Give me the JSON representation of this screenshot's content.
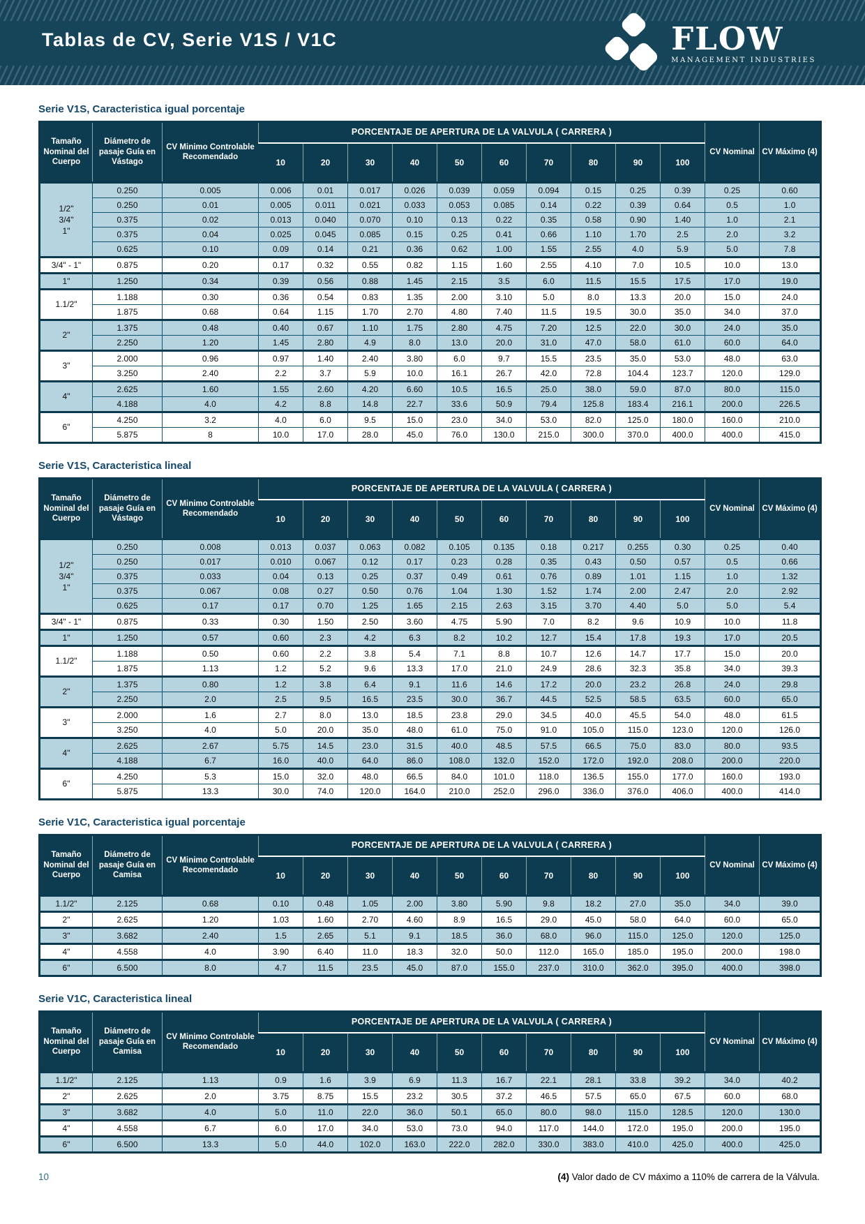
{
  "header": {
    "title": "Tablas de CV, Serie V1S / V1C",
    "logo_text": "FLOW",
    "logo_subtitle": "MANAGEMENT INDUSTRIES"
  },
  "colors": {
    "band": "#16455a",
    "table_header": "#0d3c50",
    "shaded_row": "#b6d3e0",
    "border": "#0e5270",
    "title_text": "#15486b"
  },
  "table_headers": {
    "size_label": "Tamaño Nominal del Cuerpo",
    "cvmin_label": "CV Minimo Controlable Recomendado",
    "percent_banner": "PORCENTAJE DE APERTURA DE LA VALVULA ( CARRERA )",
    "ticks": [
      "10",
      "20",
      "30",
      "40",
      "50",
      "60",
      "70",
      "80",
      "90",
      "100"
    ],
    "nominal_label": "CV Nominal",
    "max_label": "CV Máximo (4)"
  },
  "tables": [
    {
      "title": "Serie V1S, Caracteristica igual porcentaje",
      "dia_label": "Diámetro de pasaje Guía en Vástago",
      "groups": [
        {
          "size": [
            "1/2\"",
            "3/4\"",
            "1\""
          ],
          "shaded": true,
          "rows": [
            [
              "0.250",
              "0.005",
              "0.006",
              "0.01",
              "0.017",
              "0.026",
              "0.039",
              "0.059",
              "0.094",
              "0.15",
              "0.25",
              "0.39",
              "0.25",
              "0.60"
            ],
            [
              "0.250",
              "0.01",
              "0.005",
              "0.011",
              "0.021",
              "0.033",
              "0.053",
              "0.085",
              "0.14",
              "0.22",
              "0.39",
              "0.64",
              "0.5",
              "1.0"
            ],
            [
              "0.375",
              "0.02",
              "0.013",
              "0.040",
              "0.070",
              "0.10",
              "0.13",
              "0.22",
              "0.35",
              "0.58",
              "0.90",
              "1.40",
              "1.0",
              "2.1"
            ],
            [
              "0.375",
              "0.04",
              "0.025",
              "0.045",
              "0.085",
              "0.15",
              "0.25",
              "0.41",
              "0.66",
              "1.10",
              "1.70",
              "2.5",
              "2.0",
              "3.2"
            ],
            [
              "0.625",
              "0.10",
              "0.09",
              "0.14",
              "0.21",
              "0.36",
              "0.62",
              "1.00",
              "1.55",
              "2.55",
              "4.0",
              "5.9",
              "5.0",
              "7.8"
            ]
          ]
        },
        {
          "size": [
            "3/4\" - 1\""
          ],
          "shaded": false,
          "rows": [
            [
              "0.875",
              "0.20",
              "0.17",
              "0.32",
              "0.55",
              "0.82",
              "1.15",
              "1.60",
              "2.55",
              "4.10",
              "7.0",
              "10.5",
              "10.0",
              "13.0"
            ]
          ]
        },
        {
          "size": [
            "1\""
          ],
          "shaded": true,
          "rows": [
            [
              "1.250",
              "0.34",
              "0.39",
              "0.56",
              "0.88",
              "1.45",
              "2.15",
              "3.5",
              "6.0",
              "11.5",
              "15.5",
              "17.5",
              "17.0",
              "19.0"
            ]
          ]
        },
        {
          "size": [
            "1.1/2\""
          ],
          "shaded": false,
          "rows": [
            [
              "1.188",
              "0.30",
              "0.36",
              "0.54",
              "0.83",
              "1.35",
              "2.00",
              "3.10",
              "5.0",
              "8.0",
              "13.3",
              "20.0",
              "15.0",
              "24.0"
            ],
            [
              "1.875",
              "0.68",
              "0.64",
              "1.15",
              "1.70",
              "2.70",
              "4.80",
              "7.40",
              "11.5",
              "19.5",
              "30.0",
              "35.0",
              "34.0",
              "37.0"
            ]
          ]
        },
        {
          "size": [
            "2\""
          ],
          "shaded": true,
          "rows": [
            [
              "1.375",
              "0.48",
              "0.40",
              "0.67",
              "1.10",
              "1.75",
              "2.80",
              "4.75",
              "7.20",
              "12.5",
              "22.0",
              "30.0",
              "24.0",
              "35.0"
            ],
            [
              "2.250",
              "1.20",
              "1.45",
              "2.80",
              "4.9",
              "8.0",
              "13.0",
              "20.0",
              "31.0",
              "47.0",
              "58.0",
              "61.0",
              "60.0",
              "64.0"
            ]
          ]
        },
        {
          "size": [
            "3\""
          ],
          "shaded": false,
          "rows": [
            [
              "2.000",
              "0.96",
              "0.97",
              "1.40",
              "2.40",
              "3.80",
              "6.0",
              "9.7",
              "15.5",
              "23.5",
              "35.0",
              "53.0",
              "48.0",
              "63.0"
            ],
            [
              "3.250",
              "2.40",
              "2.2",
              "3.7",
              "5.9",
              "10.0",
              "16.1",
              "26.7",
              "42.0",
              "72.8",
              "104.4",
              "123.7",
              "120.0",
              "129.0"
            ]
          ]
        },
        {
          "size": [
            "4\""
          ],
          "shaded": true,
          "rows": [
            [
              "2.625",
              "1.60",
              "1.55",
              "2.60",
              "4.20",
              "6.60",
              "10.5",
              "16.5",
              "25.0",
              "38.0",
              "59.0",
              "87.0",
              "80.0",
              "115.0"
            ],
            [
              "4.188",
              "4.0",
              "4.2",
              "8.8",
              "14.8",
              "22.7",
              "33.6",
              "50.9",
              "79.4",
              "125.8",
              "183.4",
              "216.1",
              "200.0",
              "226.5"
            ]
          ]
        },
        {
          "size": [
            "6\""
          ],
          "shaded": false,
          "rows": [
            [
              "4.250",
              "3.2",
              "4.0",
              "6.0",
              "9.5",
              "15.0",
              "23.0",
              "34.0",
              "53.0",
              "82.0",
              "125.0",
              "180.0",
              "160.0",
              "210.0"
            ],
            [
              "5.875",
              "8",
              "10.0",
              "17.0",
              "28.0",
              "45.0",
              "76.0",
              "130.0",
              "215.0",
              "300.0",
              "370.0",
              "400.0",
              "400.0",
              "415.0"
            ]
          ]
        }
      ]
    },
    {
      "title": "Serie V1S, Caracteristica lineal",
      "dia_label": "Diámetro de pasaje Guía en Vástago",
      "groups": [
        {
          "size": [
            "1/2\"",
            "3/4\"",
            "1\""
          ],
          "shaded": true,
          "rows": [
            [
              "0.250",
              "0.008",
              "0.013",
              "0.037",
              "0.063",
              "0.082",
              "0.105",
              "0.135",
              "0.18",
              "0.217",
              "0.255",
              "0.30",
              "0.25",
              "0.40"
            ],
            [
              "0.250",
              "0.017",
              "0.010",
              "0.067",
              "0.12",
              "0.17",
              "0.23",
              "0.28",
              "0.35",
              "0.43",
              "0.50",
              "0.57",
              "0.5",
              "0.66"
            ],
            [
              "0.375",
              "0.033",
              "0.04",
              "0.13",
              "0.25",
              "0.37",
              "0.49",
              "0.61",
              "0.76",
              "0.89",
              "1.01",
              "1.15",
              "1.0",
              "1.32"
            ],
            [
              "0.375",
              "0.067",
              "0.08",
              "0.27",
              "0.50",
              "0.76",
              "1.04",
              "1.30",
              "1.52",
              "1.74",
              "2.00",
              "2.47",
              "2.0",
              "2.92"
            ],
            [
              "0.625",
              "0.17",
              "0.17",
              "0.70",
              "1.25",
              "1.65",
              "2.15",
              "2.63",
              "3.15",
              "3.70",
              "4.40",
              "5.0",
              "5.0",
              "5.4"
            ]
          ]
        },
        {
          "size": [
            "3/4\" - 1\""
          ],
          "shaded": false,
          "rows": [
            [
              "0.875",
              "0.33",
              "0.30",
              "1.50",
              "2.50",
              "3.60",
              "4.75",
              "5.90",
              "7.0",
              "8.2",
              "9.6",
              "10.9",
              "10.0",
              "11.8"
            ]
          ]
        },
        {
          "size": [
            "1\""
          ],
          "shaded": true,
          "rows": [
            [
              "1.250",
              "0.57",
              "0.60",
              "2.3",
              "4.2",
              "6.3",
              "8.2",
              "10.2",
              "12.7",
              "15.4",
              "17.8",
              "19.3",
              "17.0",
              "20.5"
            ]
          ]
        },
        {
          "size": [
            "1.1/2\""
          ],
          "shaded": false,
          "rows": [
            [
              "1.188",
              "0.50",
              "0.60",
              "2.2",
              "3.8",
              "5.4",
              "7.1",
              "8.8",
              "10.7",
              "12.6",
              "14.7",
              "17.7",
              "15.0",
              "20.0"
            ],
            [
              "1.875",
              "1.13",
              "1.2",
              "5.2",
              "9.6",
              "13.3",
              "17.0",
              "21.0",
              "24.9",
              "28.6",
              "32.3",
              "35.8",
              "34.0",
              "39.3"
            ]
          ]
        },
        {
          "size": [
            "2\""
          ],
          "shaded": true,
          "rows": [
            [
              "1.375",
              "0.80",
              "1.2",
              "3.8",
              "6.4",
              "9.1",
              "11.6",
              "14.6",
              "17.2",
              "20.0",
              "23.2",
              "26.8",
              "24.0",
              "29.8"
            ],
            [
              "2.250",
              "2.0",
              "2.5",
              "9.5",
              "16.5",
              "23.5",
              "30.0",
              "36.7",
              "44.5",
              "52.5",
              "58.5",
              "63.5",
              "60.0",
              "65.0"
            ]
          ]
        },
        {
          "size": [
            "3\""
          ],
          "shaded": false,
          "rows": [
            [
              "2.000",
              "1.6",
              "2.7",
              "8.0",
              "13.0",
              "18.5",
              "23.8",
              "29.0",
              "34.5",
              "40.0",
              "45.5",
              "54.0",
              "48.0",
              "61.5"
            ],
            [
              "3.250",
              "4.0",
              "5.0",
              "20.0",
              "35.0",
              "48.0",
              "61.0",
              "75.0",
              "91.0",
              "105.0",
              "115.0",
              "123.0",
              "120.0",
              "126.0"
            ]
          ]
        },
        {
          "size": [
            "4\""
          ],
          "shaded": true,
          "rows": [
            [
              "2.625",
              "2.67",
              "5.75",
              "14.5",
              "23.0",
              "31.5",
              "40.0",
              "48.5",
              "57.5",
              "66.5",
              "75.0",
              "83.0",
              "80.0",
              "93.5"
            ],
            [
              "4.188",
              "6.7",
              "16.0",
              "40.0",
              "64.0",
              "86.0",
              "108.0",
              "132.0",
              "152.0",
              "172.0",
              "192.0",
              "208.0",
              "200.0",
              "220.0"
            ]
          ]
        },
        {
          "size": [
            "6\""
          ],
          "shaded": false,
          "rows": [
            [
              "4.250",
              "5.3",
              "15.0",
              "32.0",
              "48.0",
              "66.5",
              "84.0",
              "101.0",
              "118.0",
              "136.5",
              "155.0",
              "177.0",
              "160.0",
              "193.0"
            ],
            [
              "5.875",
              "13.3",
              "30.0",
              "74.0",
              "120.0",
              "164.0",
              "210.0",
              "252.0",
              "296.0",
              "336.0",
              "376.0",
              "406.0",
              "400.0",
              "414.0"
            ]
          ]
        }
      ]
    },
    {
      "title": "Serie V1C, Caracteristica igual porcentaje",
      "dia_label": "Diámetro de pasaje Guía en Camisa",
      "groups": [
        {
          "size": [
            "1.1/2\""
          ],
          "shaded": true,
          "rows": [
            [
              "2.125",
              "0.68",
              "0.10",
              "0.48",
              "1.05",
              "2.00",
              "3.80",
              "5.90",
              "9.8",
              "18.2",
              "27.0",
              "35.0",
              "34.0",
              "39.0"
            ]
          ]
        },
        {
          "size": [
            "2\""
          ],
          "shaded": false,
          "rows": [
            [
              "2.625",
              "1.20",
              "1.03",
              "1.60",
              "2.70",
              "4.60",
              "8.9",
              "16.5",
              "29.0",
              "45.0",
              "58.0",
              "64.0",
              "60.0",
              "65.0"
            ]
          ]
        },
        {
          "size": [
            "3\""
          ],
          "shaded": true,
          "rows": [
            [
              "3.682",
              "2.40",
              "1.5",
              "2.65",
              "5.1",
              "9.1",
              "18.5",
              "36.0",
              "68.0",
              "96.0",
              "115.0",
              "125.0",
              "120.0",
              "125.0"
            ]
          ]
        },
        {
          "size": [
            "4\""
          ],
          "shaded": false,
          "rows": [
            [
              "4.558",
              "4.0",
              "3.90",
              "6.40",
              "11.0",
              "18.3",
              "32.0",
              "50.0",
              "112.0",
              "165.0",
              "185.0",
              "195.0",
              "200.0",
              "198.0"
            ]
          ]
        },
        {
          "size": [
            "6\""
          ],
          "shaded": true,
          "rows": [
            [
              "6.500",
              "8.0",
              "4.7",
              "11.5",
              "23.5",
              "45.0",
              "87.0",
              "155.0",
              "237.0",
              "310.0",
              "362.0",
              "395.0",
              "400.0",
              "398.0"
            ]
          ]
        }
      ]
    },
    {
      "title": "Serie V1C, Caracteristica lineal",
      "dia_label": "Diámetro de pasaje Guía en Camisa",
      "groups": [
        {
          "size": [
            "1.1/2\""
          ],
          "shaded": true,
          "rows": [
            [
              "2.125",
              "1.13",
              "0.9",
              "1.6",
              "3.9",
              "6.9",
              "11.3",
              "16.7",
              "22.1",
              "28.1",
              "33.8",
              "39.2",
              "34.0",
              "40.2"
            ]
          ]
        },
        {
          "size": [
            "2\""
          ],
          "shaded": false,
          "rows": [
            [
              "2.625",
              "2.0",
              "3.75",
              "8.75",
              "15.5",
              "23.2",
              "30.5",
              "37.2",
              "46.5",
              "57.5",
              "65.0",
              "67.5",
              "60.0",
              "68.0"
            ]
          ]
        },
        {
          "size": [
            "3\""
          ],
          "shaded": true,
          "rows": [
            [
              "3.682",
              "4.0",
              "5.0",
              "11.0",
              "22.0",
              "36.0",
              "50.1",
              "65.0",
              "80.0",
              "98.0",
              "115.0",
              "128.5",
              "120.0",
              "130.0"
            ]
          ]
        },
        {
          "size": [
            "4\""
          ],
          "shaded": false,
          "rows": [
            [
              "4.558",
              "6.7",
              "6.0",
              "17.0",
              "34.0",
              "53.0",
              "73.0",
              "94.0",
              "117.0",
              "144.0",
              "172.0",
              "195.0",
              "200.0",
              "195.0"
            ]
          ]
        },
        {
          "size": [
            "6\""
          ],
          "shaded": true,
          "rows": [
            [
              "6.500",
              "13.3",
              "5.0",
              "44.0",
              "102.0",
              "163.0",
              "222.0",
              "282.0",
              "330.0",
              "383.0",
              "410.0",
              "425.0",
              "400.0",
              "425.0"
            ]
          ]
        }
      ]
    }
  ],
  "footer": {
    "page_number": "10",
    "note_marker": "(4)",
    "note_text": " Valor dado de CV máximo a 110% de carrera de la Válvula."
  }
}
